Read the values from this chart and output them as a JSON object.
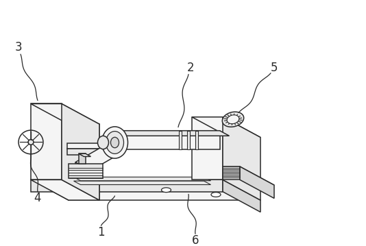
{
  "bg_color": "#ffffff",
  "line_color": "#2a2a2a",
  "fill_light": "#f5f5f5",
  "fill_mid": "#e8e8e8",
  "fill_dark": "#d8d8d8",
  "fill_darker": "#c8c8c8",
  "label_color": "#2a2a2a",
  "fig_width": 5.34,
  "fig_height": 3.59,
  "dpi": 100,
  "label_fontsize": 12,
  "sx": 0.18,
  "sy": 0.45
}
